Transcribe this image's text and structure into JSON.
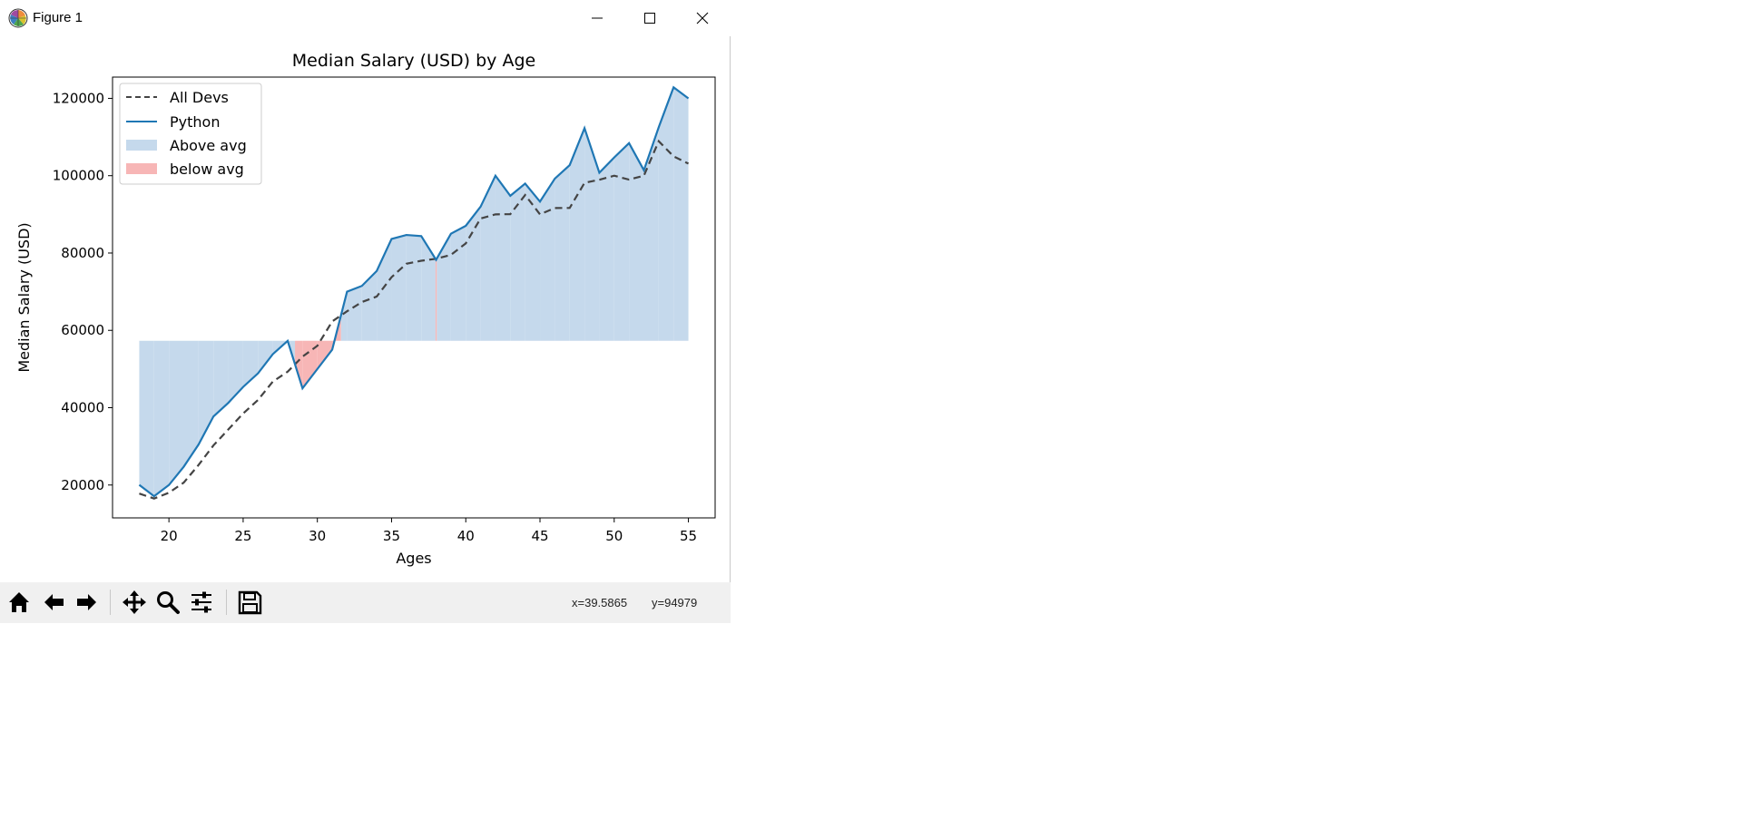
{
  "window": {
    "title": "Figure 1"
  },
  "colors": {
    "python": "#1f77b4",
    "all_devs": "#444444",
    "above_fill": "#c5d9ec",
    "below_fill": "#f7b6b6"
  },
  "toolbar": {
    "buttons": [
      "home-icon",
      "back-arrow-icon",
      "forward-arrow-icon",
      "pan-icon",
      "zoom-icon",
      "configure-subplots-icon",
      "save-icon"
    ],
    "coord_x": "x=39.5865",
    "coord_y": "y=94979"
  },
  "chart_data": {
    "type": "line",
    "title": "Median Salary (USD) by Age",
    "xlabel": "Ages",
    "ylabel": "Median Salary (USD)",
    "xlim": [
      16.2,
      56.8
    ],
    "ylim": [
      11500,
      125500
    ],
    "xticks": [
      20,
      25,
      30,
      35,
      40,
      45,
      50,
      55
    ],
    "yticks": [
      20000,
      40000,
      60000,
      80000,
      100000,
      120000
    ],
    "fill_baseline": 57287,
    "x": [
      18,
      19,
      20,
      21,
      22,
      23,
      24,
      25,
      26,
      27,
      28,
      29,
      30,
      31,
      32,
      33,
      34,
      35,
      36,
      37,
      38,
      39,
      40,
      41,
      42,
      43,
      44,
      45,
      46,
      47,
      48,
      49,
      50,
      51,
      52,
      53,
      54,
      55
    ],
    "series": [
      {
        "name": "All Devs",
        "style": "dashed",
        "values": [
          17784,
          16500,
          18012,
          20628,
          25206,
          30252,
          34368,
          38496,
          42000,
          46752,
          49320,
          53200,
          56000,
          62316,
          64928,
          67317,
          68748,
          73752,
          77232,
          78000,
          78508,
          79536,
          82488,
          88935,
          90000,
          90056,
          95000,
          90000,
          91633,
          91660,
          98150,
          98964,
          100000,
          98988,
          100000,
          108923,
          105000,
          103117
        ]
      },
      {
        "name": "Python",
        "style": "solid",
        "values": [
          20046,
          17100,
          20000,
          24744,
          30500,
          37732,
          41247,
          45372,
          48876,
          53850,
          57287,
          45000,
          50000,
          55000,
          70000,
          71496,
          75370,
          83640,
          84666,
          84392,
          78254,
          85000,
          87038,
          91991,
          100000,
          94796,
          97962,
          93302,
          99240,
          102736,
          112285,
          100771,
          104708,
          108423,
          101407,
          112542,
          122870,
          120000
        ]
      }
    ],
    "legend": {
      "placement": "upper-left",
      "entries": [
        {
          "label": "All Devs",
          "kind": "dashed-line"
        },
        {
          "label": "Python",
          "kind": "line"
        },
        {
          "label": "Above avg",
          "kind": "patch"
        },
        {
          "label": "below avg",
          "kind": "patch"
        }
      ]
    },
    "grid": false
  }
}
